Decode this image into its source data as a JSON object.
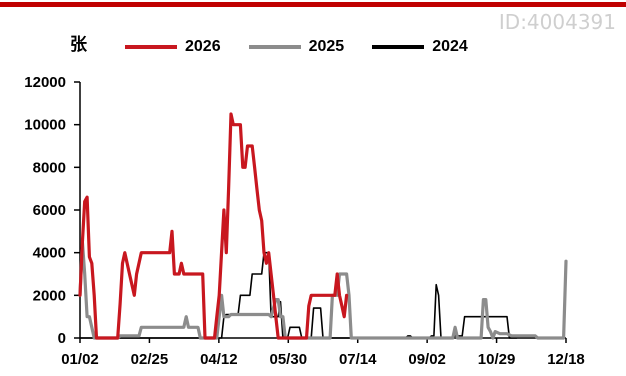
{
  "watermark": "ID:4004391",
  "chart_data": {
    "type": "line",
    "unit_label": "张",
    "ylim": [
      0,
      12000
    ],
    "y_ticks": [
      "0",
      "2000",
      "4000",
      "6000",
      "8000",
      "10000",
      "12000"
    ],
    "x_ticks": [
      "01/02",
      "02/25",
      "04/12",
      "05/30",
      "07/14",
      "09/02",
      "10/29",
      "12/18"
    ],
    "grid": false,
    "legend_position": "top",
    "series": [
      {
        "name": "2026",
        "color": "#c8171f",
        "points": [
          [
            0,
            2000
          ],
          [
            1,
            4500
          ],
          [
            2,
            6400
          ],
          [
            3,
            6600
          ],
          [
            4,
            3800
          ],
          [
            5,
            3500
          ],
          [
            6,
            2000
          ],
          [
            7,
            0
          ],
          [
            10,
            0
          ],
          [
            16,
            0
          ],
          [
            17,
            1600
          ],
          [
            18,
            3500
          ],
          [
            19,
            4000
          ],
          [
            21,
            3000
          ],
          [
            23,
            2000
          ],
          [
            24,
            3000
          ],
          [
            26,
            4000
          ],
          [
            30,
            4000
          ],
          [
            34,
            4000
          ],
          [
            36,
            4000
          ],
          [
            37,
            4000
          ],
          [
            38,
            4000
          ],
          [
            39,
            5000
          ],
          [
            40,
            3000
          ],
          [
            42,
            3000
          ],
          [
            43,
            3500
          ],
          [
            44,
            3000
          ],
          [
            46,
            3000
          ],
          [
            48,
            3000
          ],
          [
            52,
            3000
          ],
          [
            53,
            0
          ],
          [
            55,
            0
          ],
          [
            57,
            0
          ],
          [
            58,
            1000
          ],
          [
            59,
            2000
          ],
          [
            61,
            6000
          ],
          [
            62,
            4000
          ],
          [
            63,
            7000
          ],
          [
            64,
            10500
          ],
          [
            65,
            10000
          ],
          [
            66,
            10000
          ],
          [
            67,
            10000
          ],
          [
            68,
            10000
          ],
          [
            69,
            8000
          ],
          [
            70,
            8000
          ],
          [
            71,
            9000
          ],
          [
            72,
            9000
          ],
          [
            73,
            9000
          ],
          [
            74,
            8000
          ],
          [
            75,
            7000
          ],
          [
            76,
            6000
          ],
          [
            77,
            5500
          ],
          [
            78,
            4000
          ],
          [
            79,
            3500
          ],
          [
            80,
            4000
          ],
          [
            81,
            3000
          ],
          [
            82,
            2000
          ],
          [
            83,
            1000
          ],
          [
            84,
            0
          ],
          [
            85,
            0
          ],
          [
            96,
            0
          ],
          [
            97,
            1500
          ],
          [
            98,
            2000
          ],
          [
            108,
            2000
          ],
          [
            109,
            3000
          ],
          [
            110,
            2000
          ],
          [
            111,
            1500
          ],
          [
            112,
            1000
          ],
          [
            113,
            2000
          ]
        ]
      },
      {
        "name": "2025",
        "color": "#8c8c8c",
        "points": [
          [
            0,
            2000
          ],
          [
            1,
            4500
          ],
          [
            2,
            3000
          ],
          [
            3,
            1000
          ],
          [
            4,
            1000
          ],
          [
            5,
            500
          ],
          [
            6,
            0
          ],
          [
            16,
            0
          ],
          [
            17,
            100
          ],
          [
            20,
            100
          ],
          [
            25,
            100
          ],
          [
            26,
            500
          ],
          [
            31,
            500
          ],
          [
            40,
            500
          ],
          [
            44,
            500
          ],
          [
            45,
            1000
          ],
          [
            46,
            500
          ],
          [
            48,
            500
          ],
          [
            50,
            500
          ],
          [
            51,
            0
          ],
          [
            58,
            0
          ],
          [
            59,
            1000
          ],
          [
            60,
            2000
          ],
          [
            61,
            1000
          ],
          [
            63,
            1000
          ],
          [
            64,
            1100
          ],
          [
            75,
            1100
          ],
          [
            80,
            1100
          ],
          [
            81,
            1000
          ],
          [
            83,
            1800
          ],
          [
            84,
            1800
          ],
          [
            85,
            1000
          ],
          [
            86,
            1000
          ],
          [
            87,
            0
          ],
          [
            100,
            0
          ],
          [
            106,
            0
          ],
          [
            107,
            2000
          ],
          [
            109,
            2000
          ],
          [
            110,
            3000
          ],
          [
            111,
            3000
          ],
          [
            113,
            3000
          ],
          [
            114,
            2000
          ],
          [
            115,
            0
          ],
          [
            133,
            0
          ],
          [
            150,
            0
          ],
          [
            158,
            0
          ],
          [
            159,
            500
          ],
          [
            160,
            0
          ],
          [
            165,
            0
          ],
          [
            170,
            0
          ],
          [
            171,
            1800
          ],
          [
            172,
            1800
          ],
          [
            173,
            500
          ],
          [
            174,
            300
          ],
          [
            175,
            0
          ],
          [
            176,
            300
          ],
          [
            178,
            200
          ],
          [
            181,
            200
          ],
          [
            183,
            100
          ],
          [
            190,
            100
          ],
          [
            193,
            100
          ],
          [
            194,
            0
          ],
          [
            204,
            0
          ],
          [
            205,
            0
          ],
          [
            206,
            3600
          ]
        ]
      },
      {
        "name": "2024",
        "color": "#000000",
        "points": [
          [
            0,
            0
          ],
          [
            60,
            0
          ],
          [
            61,
            1000
          ],
          [
            62,
            1100
          ],
          [
            67,
            1100
          ],
          [
            68,
            2000
          ],
          [
            72,
            2000
          ],
          [
            73,
            3000
          ],
          [
            77,
            3000
          ],
          [
            78,
            4000
          ],
          [
            80,
            4000
          ],
          [
            81,
            1000
          ],
          [
            84,
            1000
          ],
          [
            85,
            1700
          ],
          [
            86,
            0
          ],
          [
            88,
            0
          ],
          [
            89,
            500
          ],
          [
            93,
            500
          ],
          [
            94,
            0
          ],
          [
            98,
            0
          ],
          [
            99,
            1400
          ],
          [
            102,
            1400
          ],
          [
            103,
            0
          ],
          [
            110,
            0
          ],
          [
            138,
            0
          ],
          [
            139,
            100
          ],
          [
            140,
            100
          ],
          [
            141,
            0
          ],
          [
            148,
            0
          ],
          [
            149,
            100
          ],
          [
            150,
            100
          ],
          [
            151,
            2500
          ],
          [
            152,
            2000
          ],
          [
            153,
            0
          ],
          [
            158,
            0
          ],
          [
            159,
            100
          ],
          [
            162,
            100
          ],
          [
            163,
            1000
          ],
          [
            175,
            1000
          ],
          [
            176,
            1000
          ],
          [
            181,
            1000
          ],
          [
            182,
            0
          ],
          [
            185,
            0
          ]
        ]
      }
    ]
  }
}
